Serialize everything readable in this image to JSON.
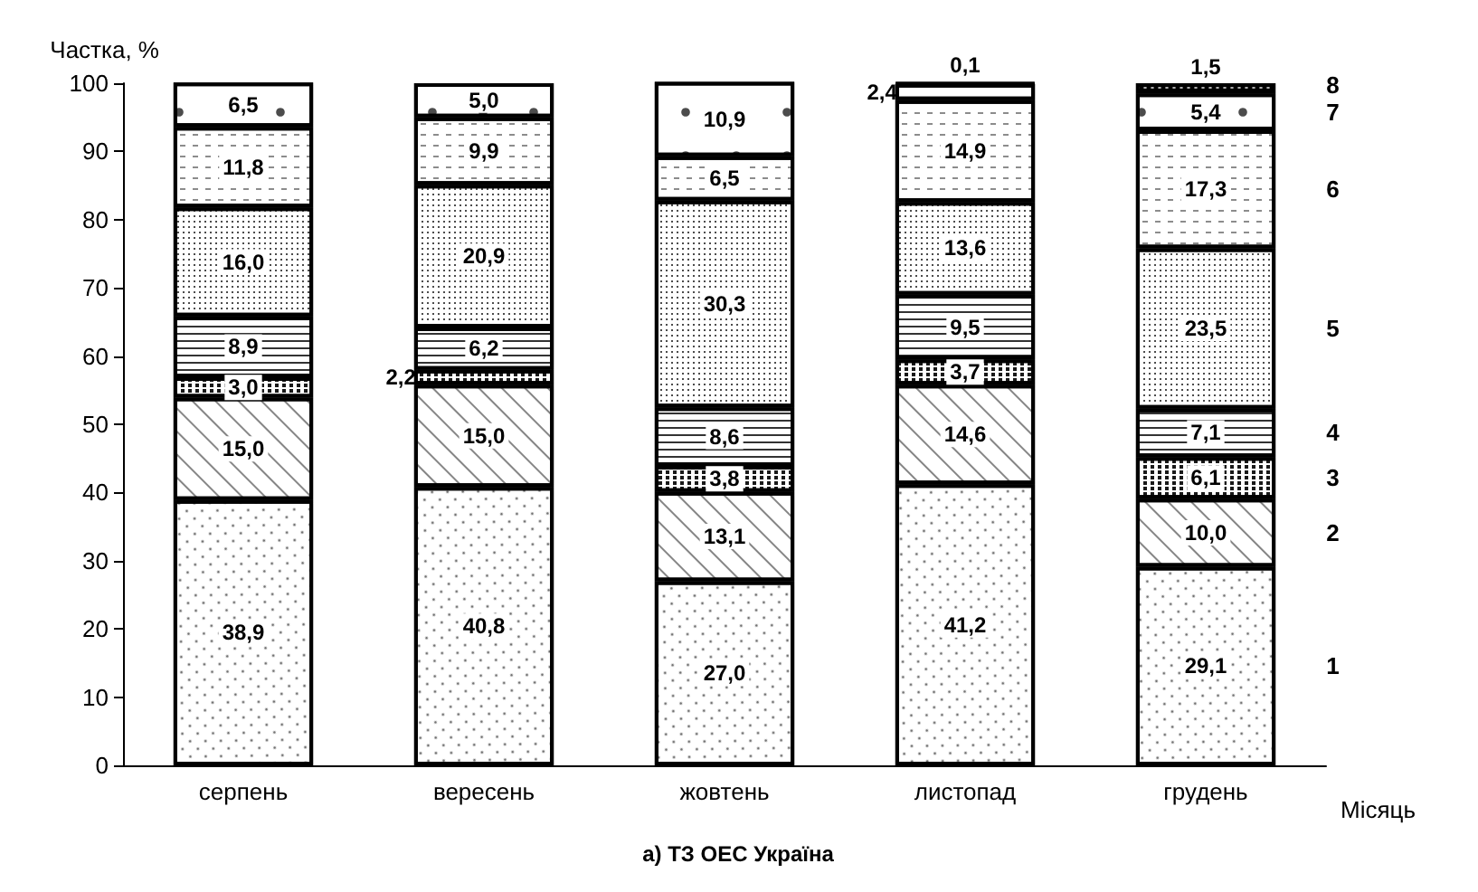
{
  "chart_data": {
    "type": "bar",
    "stacked": true,
    "title": "а) ТЗ ОЕС Україна",
    "xlabel": "Місяць",
    "ylabel": "Частка, %",
    "categories": [
      "серпень",
      "вересень",
      "жовтень",
      "листопад",
      "грудень"
    ],
    "ylim": [
      0,
      100
    ],
    "yticks": [
      0,
      10,
      20,
      30,
      40,
      50,
      60,
      70,
      80,
      90,
      100
    ],
    "grid": false,
    "legend": false,
    "series": [
      {
        "name": "1",
        "color": "#ffffff",
        "values": [
          38.9,
          40.8,
          27.0,
          41.2,
          29.1
        ],
        "value_labels": [
          "38,9",
          "40,8",
          "27,0",
          "41,2",
          "29,1"
        ]
      },
      {
        "name": "2",
        "color": "#ffffff",
        "values": [
          15.0,
          15.0,
          13.1,
          14.6,
          10.0
        ],
        "value_labels": [
          "15,0",
          "15,0",
          "13,1",
          "14,6",
          "10,0"
        ]
      },
      {
        "name": "3",
        "color": "#ffffff",
        "values": [
          3.0,
          2.2,
          3.8,
          3.7,
          6.1
        ],
        "value_labels": [
          "3,0",
          "2,2",
          "3,8",
          "3,7",
          "6,1"
        ]
      },
      {
        "name": "4",
        "color": "#ffffff",
        "values": [
          8.9,
          6.2,
          8.6,
          9.5,
          7.1
        ],
        "value_labels": [
          "8,9",
          "6,2",
          "8,6",
          "9,5",
          "7,1"
        ]
      },
      {
        "name": "5",
        "color": "#ffffff",
        "values": [
          16.0,
          20.9,
          30.3,
          13.6,
          23.5
        ],
        "value_labels": [
          "16,0",
          "20,9",
          "30,3",
          "13,6",
          "23,5"
        ]
      },
      {
        "name": "6",
        "color": "#ffffff",
        "values": [
          11.8,
          9.9,
          6.5,
          14.9,
          17.3
        ],
        "value_labels": [
          "11,8",
          "9,9",
          "6,5",
          "14,9",
          "17,3"
        ]
      },
      {
        "name": "7",
        "color": "#ffffff",
        "values": [
          6.5,
          5.0,
          10.9,
          2.4,
          5.4
        ],
        "value_labels": [
          "6,5",
          "5,0",
          "10,9",
          "2,4",
          "5,4"
        ]
      },
      {
        "name": "8",
        "color": "#000000",
        "values": [
          null,
          null,
          null,
          0.1,
          1.5
        ],
        "value_labels": [
          null,
          null,
          null,
          "0,1",
          "1,5"
        ]
      }
    ]
  }
}
